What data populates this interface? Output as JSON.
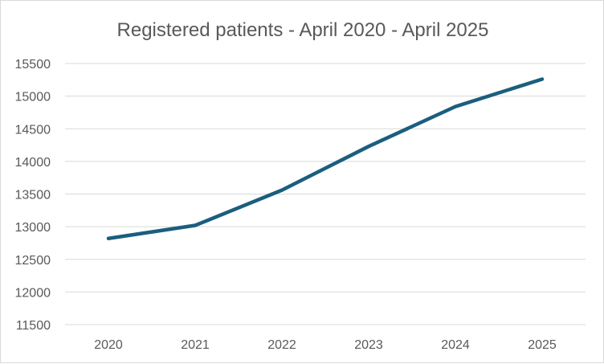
{
  "chart_data": {
    "type": "line",
    "title": "Registered patients - April 2020 - April 2025",
    "xlabel": "",
    "ylabel": "",
    "categories": [
      "2020",
      "2021",
      "2022",
      "2023",
      "2024",
      "2025"
    ],
    "series": [
      {
        "values": [
          12820,
          13020,
          13560,
          14230,
          14840,
          15260
        ],
        "color": "#1b5e7e"
      }
    ],
    "ylim": [
      11500,
      15500
    ],
    "yticks": [
      11500,
      12000,
      12500,
      13000,
      13500,
      14000,
      14500,
      15000,
      15500
    ],
    "grid": true,
    "legend": "none"
  }
}
